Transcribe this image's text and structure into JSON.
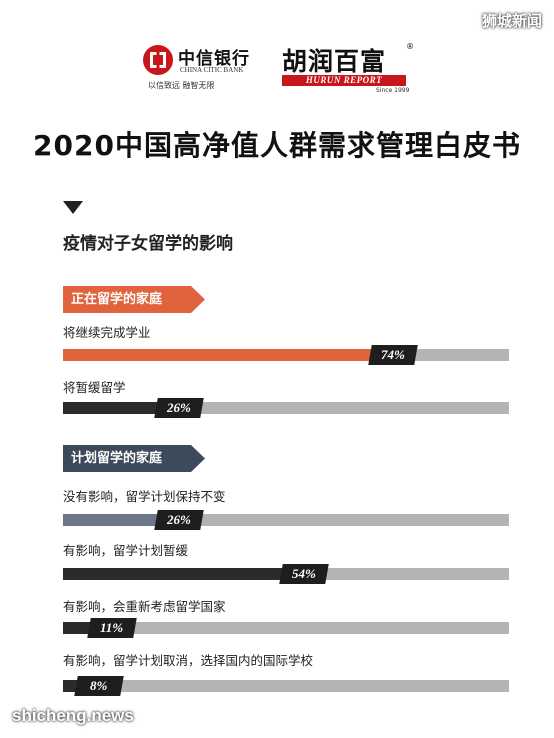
{
  "watermark_top": "狮城新闻",
  "watermark_bottom": "shicheng.news",
  "logos": {
    "citic_cn": "中信银行",
    "citic_en": "CHINA CITIC BANK",
    "citic_slogan": "以信致远  融智无限",
    "hurun_cn": "胡润百富",
    "hurun_en": "HURUN REPORT",
    "hurun_since": "Since 1999",
    "hurun_reg": "®"
  },
  "title": "2020中国高净值人群需求管理白皮书",
  "section_title": "疫情对子女留学的影响",
  "colors": {
    "orange": "#e0633d",
    "navy": "#3d4a5c",
    "dark": "#2b2b2b",
    "slate": "#6d7689",
    "track": "#b4b4b4"
  },
  "chart_data": {
    "type": "bar",
    "title": "疫情对子女留学的影响",
    "unit": "%",
    "xlim": [
      0,
      100
    ],
    "groups": [
      {
        "name": "正在留学的家庭",
        "color": "#e0633d",
        "items": [
          {
            "label": "将继续完成学业",
            "value": 74,
            "value_label": "74%",
            "color": "#e0633d"
          },
          {
            "label": "将暂缓留学",
            "value": 26,
            "value_label": "26%",
            "color": "#2b2b2b"
          }
        ]
      },
      {
        "name": "计划留学的家庭",
        "color": "#3d4a5c",
        "items": [
          {
            "label": "没有影响，留学计划保持不变",
            "value": 26,
            "value_label": "26%",
            "color": "#6d7689"
          },
          {
            "label": "有影响，留学计划暂缓",
            "value": 54,
            "value_label": "54%",
            "color": "#2b2b2b"
          },
          {
            "label": "有影响，会重新考虑留学国家",
            "value": 11,
            "value_label": "11%",
            "color": "#2b2b2b"
          },
          {
            "label": "有影响，留学计划取消，选择国内的国际学校",
            "value": 8,
            "value_label": "8%",
            "color": "#2b2b2b"
          }
        ]
      }
    ]
  }
}
